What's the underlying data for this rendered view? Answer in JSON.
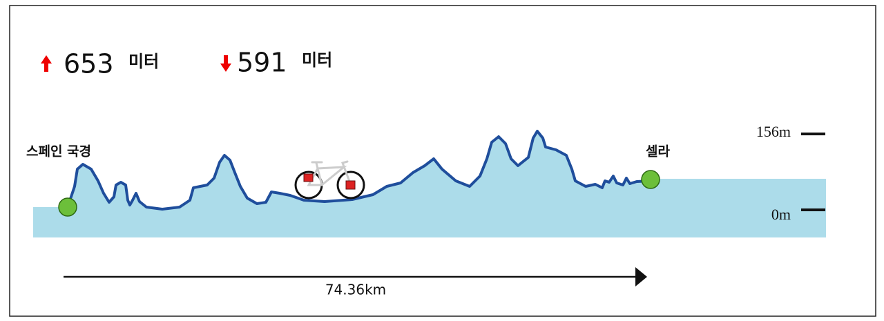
{
  "ascent": {
    "value": 653,
    "unit": "미터"
  },
  "descent": {
    "value": 591,
    "unit": "미터"
  },
  "start_label": "스페인 국경",
  "end_label": "셀라",
  "scale": {
    "top_label": "156m",
    "bottom_label": "0m"
  },
  "distance": "74.36km"
}
